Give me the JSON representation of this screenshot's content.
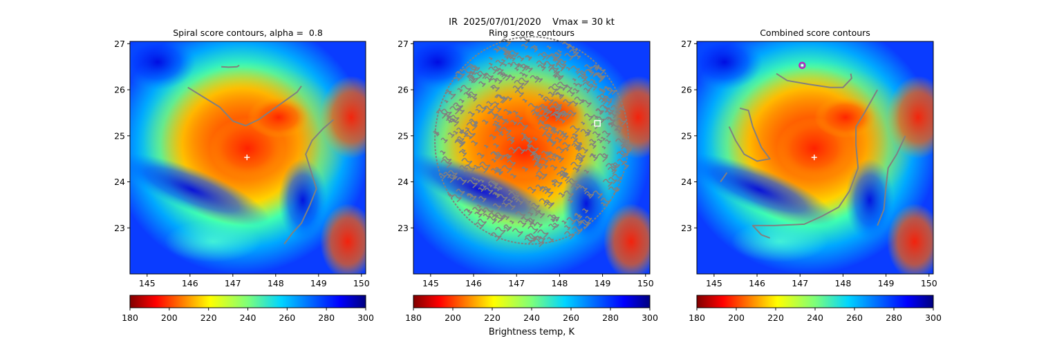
{
  "figure": {
    "suptitle": "IR  2025/07/01/2020    Vmax = 30 kt",
    "colorbar_label": "Brightness temp, K"
  },
  "colors": {
    "contour": "#808080",
    "marker": "#ffffff",
    "target_marker": "#c020c0"
  },
  "chart_data": [
    {
      "type": "heatmap",
      "title": "Spiral score contours, alpha =  0.8",
      "xlim": [
        144.6,
        150.1
      ],
      "ylim": [
        22.0,
        27.05
      ],
      "xticks": [
        145,
        146,
        147,
        148,
        149,
        150
      ],
      "yticks": [
        23,
        24,
        25,
        26,
        27
      ],
      "colorbar": {
        "cmap": "jet_r",
        "range": [
          180,
          300
        ],
        "ticks": [
          180,
          200,
          220,
          240,
          260,
          280,
          300
        ]
      },
      "center_marker": {
        "lon": 147.33,
        "lat": 24.53
      },
      "contours": [
        [
          [
            146.73,
            26.5
          ],
          [
            146.9,
            26.49
          ],
          [
            147.1,
            26.5
          ],
          [
            147.15,
            26.53
          ]
        ],
        [
          [
            145.95,
            26.05
          ],
          [
            146.3,
            25.85
          ],
          [
            146.7,
            25.62
          ],
          [
            147.0,
            25.32
          ],
          [
            147.3,
            25.22
          ],
          [
            147.6,
            25.35
          ],
          [
            147.9,
            25.55
          ],
          [
            148.2,
            25.75
          ],
          [
            148.5,
            25.95
          ],
          [
            148.6,
            26.08
          ]
        ],
        [
          [
            149.35,
            25.35
          ],
          [
            149.1,
            25.15
          ],
          [
            148.85,
            24.9
          ],
          [
            148.7,
            24.6
          ],
          [
            148.8,
            24.3
          ],
          [
            148.95,
            23.85
          ],
          [
            148.8,
            23.5
          ],
          [
            148.6,
            23.1
          ],
          [
            148.4,
            22.9
          ],
          [
            148.2,
            22.65
          ]
        ]
      ]
    },
    {
      "type": "heatmap",
      "title": "Ring score contours",
      "xlim": [
        144.6,
        150.1
      ],
      "ylim": [
        22.0,
        27.05
      ],
      "xticks": [
        145,
        146,
        147,
        148,
        149,
        150
      ],
      "yticks": [
        23,
        24,
        25,
        26,
        27
      ],
      "colorbar": {
        "cmap": "jet_r",
        "range": [
          180,
          300
        ],
        "ticks": [
          180,
          200,
          220,
          240,
          260,
          280,
          300
        ]
      },
      "ring_contour_region": {
        "center_lon": 147.35,
        "center_lat": 24.9,
        "radius_deg": 2.25
      },
      "square_marker": {
        "lon": 148.88,
        "lat": 25.27
      }
    },
    {
      "type": "heatmap",
      "title": "Combined score contours",
      "xlim": [
        144.6,
        150.1
      ],
      "ylim": [
        22.0,
        27.05
      ],
      "xticks": [
        145,
        146,
        147,
        148,
        149,
        150
      ],
      "yticks": [
        23,
        24,
        25,
        26,
        27
      ],
      "colorbar": {
        "cmap": "jet_r",
        "range": [
          180,
          300
        ],
        "ticks": [
          180,
          200,
          220,
          240,
          260,
          280,
          300
        ]
      },
      "center_marker": {
        "lon": 147.33,
        "lat": 24.53
      },
      "circle_marker": {
        "lon": 147.05,
        "lat": 26.53
      },
      "contours": [
        [
          [
            146.45,
            26.35
          ],
          [
            146.7,
            26.2
          ],
          [
            147.2,
            26.12
          ],
          [
            147.7,
            26.05
          ],
          [
            148.0,
            26.05
          ],
          [
            148.2,
            26.25
          ],
          [
            148.18,
            26.35
          ]
        ],
        [
          [
            145.35,
            25.2
          ],
          [
            145.5,
            24.9
          ],
          [
            145.7,
            24.6
          ],
          [
            146.0,
            24.45
          ],
          [
            146.3,
            24.5
          ],
          [
            146.1,
            24.75
          ],
          [
            145.9,
            25.2
          ],
          [
            145.8,
            25.55
          ],
          [
            145.6,
            25.6
          ]
        ],
        [
          [
            145.15,
            24.0
          ],
          [
            145.3,
            24.2
          ]
        ],
        [
          [
            148.8,
            26.0
          ],
          [
            148.5,
            25.5
          ],
          [
            148.3,
            25.2
          ],
          [
            148.3,
            24.8
          ],
          [
            148.35,
            24.3
          ],
          [
            148.15,
            23.8
          ],
          [
            147.9,
            23.45
          ],
          [
            147.5,
            23.25
          ],
          [
            147.1,
            23.08
          ],
          [
            146.4,
            23.05
          ],
          [
            145.9,
            23.05
          ],
          [
            146.1,
            22.85
          ],
          [
            146.3,
            22.78
          ]
        ],
        [
          [
            149.45,
            25.0
          ],
          [
            149.25,
            24.6
          ],
          [
            149.05,
            24.3
          ],
          [
            149.0,
            23.9
          ],
          [
            148.95,
            23.4
          ],
          [
            148.8,
            23.05
          ]
        ]
      ]
    }
  ]
}
